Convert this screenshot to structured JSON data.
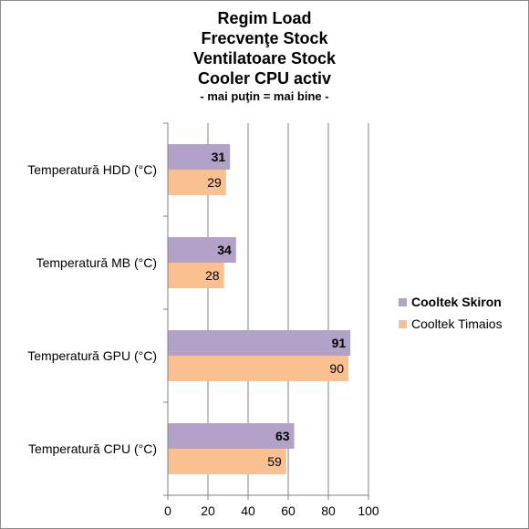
{
  "chart_data": {
    "type": "bar",
    "orientation": "horizontal",
    "title_lines": [
      "Regim Load",
      "Frecvenţe Stock",
      "Ventilatoare Stock",
      "Cooler CPU activ",
      "- mai puţin = mai bine -"
    ],
    "categories": [
      "Temperatură  HDD (°C)",
      "Temperatură  MB (°C)",
      "Temperatură  GPU (°C)",
      "Temperatură  CPU (°C)"
    ],
    "series": [
      {
        "name": "Cooltek Skiron",
        "values": [
          31,
          34,
          91,
          63
        ],
        "color": "#b3a2c7",
        "bold": true
      },
      {
        "name": "Cooltek Timaios",
        "values": [
          29,
          28,
          90,
          59
        ],
        "color": "#fac090",
        "bold": false
      }
    ],
    "xlim": [
      0,
      100
    ],
    "xticks": [
      0,
      20,
      40,
      60,
      80,
      100
    ],
    "grid": true,
    "legend_position": "right"
  }
}
